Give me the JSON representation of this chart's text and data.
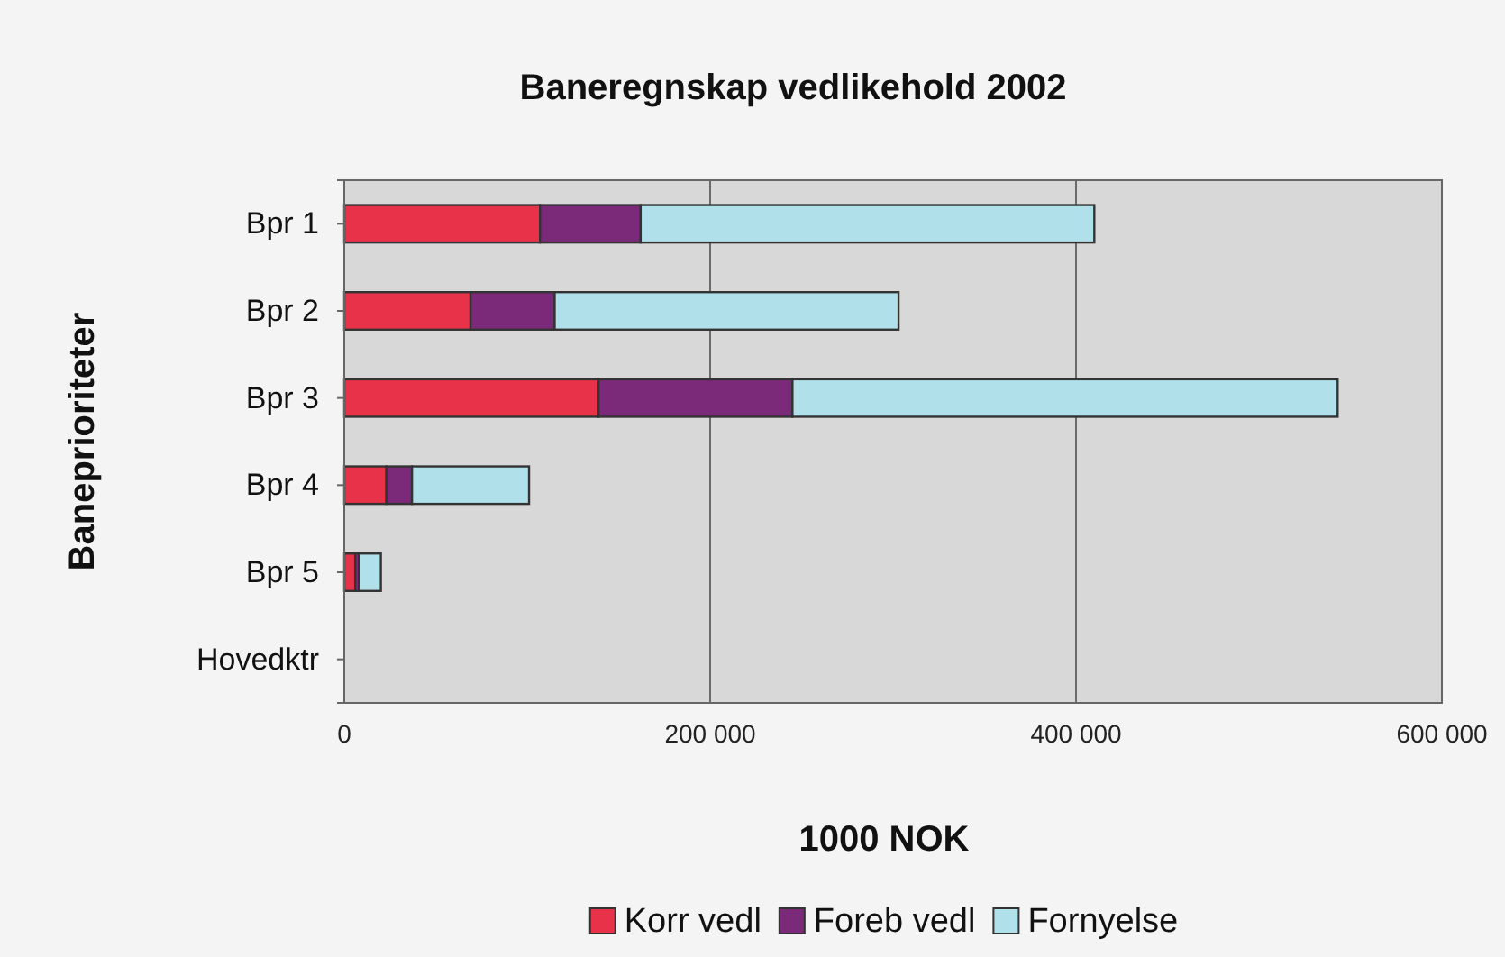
{
  "chart_data": {
    "type": "bar",
    "orientation": "horizontal",
    "stacked": true,
    "title": "Baneregnskap vedlikehold 2002",
    "xlabel": "1000 NOK",
    "ylabel": "Baneprioriteter",
    "categories": [
      "Bpr 1",
      "Bpr 2",
      "Bpr 3",
      "Bpr 4",
      "Bpr 5",
      "Hovedktr"
    ],
    "series": [
      {
        "name": "Korr vedl",
        "color": "#e8324a",
        "values": [
          107000,
          69000,
          139000,
          23000,
          6000,
          null
        ]
      },
      {
        "name": "Foreb vedl",
        "color": "#7b2a7a",
        "values": [
          55000,
          46000,
          106000,
          14000,
          2000,
          null
        ]
      },
      {
        "name": "Fornyelse",
        "color": "#b0e0ea",
        "values": [
          248000,
          188000,
          298000,
          64000,
          12000,
          null
        ]
      }
    ],
    "xlim": [
      0,
      600000
    ],
    "xticks": [
      {
        "value": 0,
        "label": "0"
      },
      {
        "value": 200000,
        "label": "200 000"
      },
      {
        "value": 400000,
        "label": "400 000"
      },
      {
        "value": 600000,
        "label": "600 000"
      }
    ],
    "grid": "x",
    "legend": "bottom"
  }
}
